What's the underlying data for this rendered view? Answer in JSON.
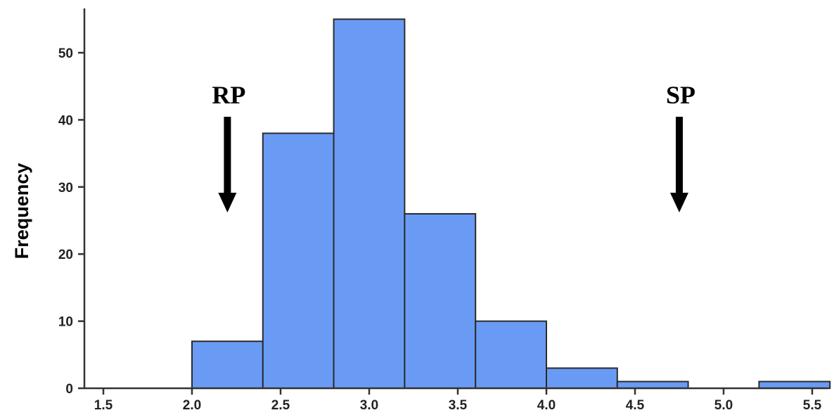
{
  "chart_data": {
    "type": "bar",
    "subtype": "histogram",
    "bins": [
      {
        "x0": 2.0,
        "x1": 2.4,
        "value": 7
      },
      {
        "x0": 2.4,
        "x1": 2.8,
        "value": 38
      },
      {
        "x0": 2.8,
        "x1": 3.2,
        "value": 55
      },
      {
        "x0": 3.2,
        "x1": 3.6,
        "value": 26
      },
      {
        "x0": 3.6,
        "x1": 4.0,
        "value": 10
      },
      {
        "x0": 4.0,
        "x1": 4.4,
        "value": 3
      },
      {
        "x0": 4.4,
        "x1": 4.8,
        "value": 1
      },
      {
        "x0": 4.8,
        "x1": 5.2,
        "value": 0
      },
      {
        "x0": 5.2,
        "x1": 5.6,
        "value": 1
      }
    ],
    "title": "",
    "xlabel": "",
    "ylabel": "Frequency",
    "xlim": [
      1.4,
      5.7
    ],
    "ylim": [
      0,
      56
    ],
    "xticks": [
      1.5,
      2.0,
      2.5,
      3.0,
      3.5,
      4.0,
      4.5,
      5.0,
      5.5
    ],
    "xtick_labels": [
      "1.5",
      "2.0",
      "2.5",
      "3.0",
      "3.5",
      "4.0",
      "4.5",
      "5.0",
      "5.5"
    ],
    "yticks": [
      0,
      10,
      20,
      30,
      40,
      50
    ],
    "ytick_labels": [
      "0",
      "10",
      "20",
      "30",
      "40",
      "50"
    ],
    "grid": false,
    "bar_color": "#6a9bf4",
    "annotations": [
      {
        "text": "RP",
        "x": 2.2,
        "arrow": "down"
      },
      {
        "text": "SP",
        "x": 4.75,
        "arrow": "down"
      }
    ]
  }
}
